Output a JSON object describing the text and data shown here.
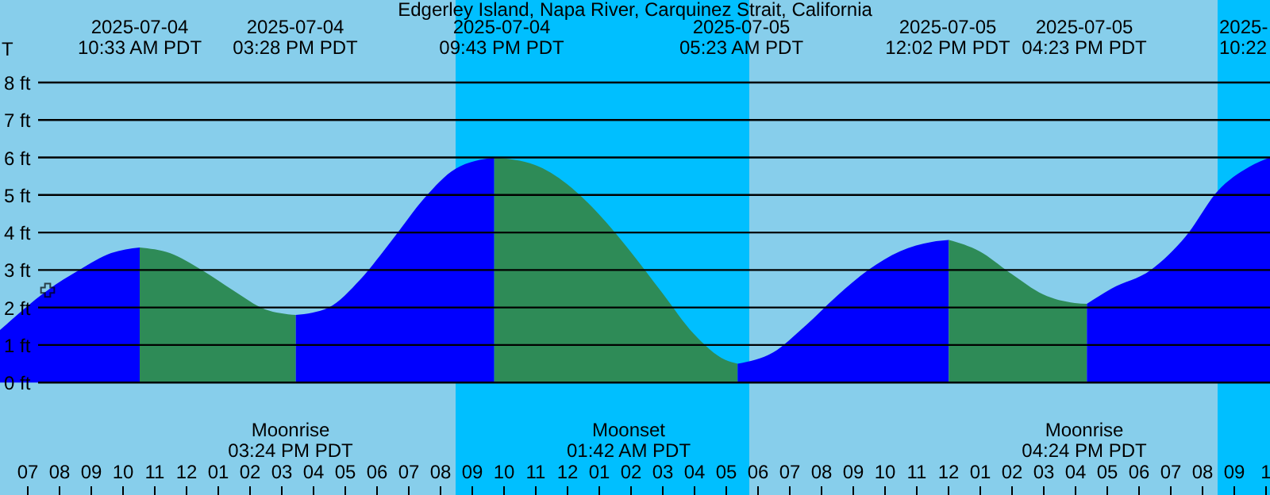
{
  "chart_data": {
    "type": "area",
    "title": "Edgerley Island, Napa River, Carquinez Strait, California",
    "xlim": [
      "2025-07-04T06:09",
      "2025-07-05T22:09"
    ],
    "ylim": [
      -3.0,
      10.2
    ],
    "xticks": [
      {
        "value": "2025-07-04T07:00",
        "label": "07"
      },
      {
        "value": "2025-07-04T08:00",
        "label": "08"
      },
      {
        "value": "2025-07-04T09:00",
        "label": "09"
      },
      {
        "value": "2025-07-04T10:00",
        "label": "10"
      },
      {
        "value": "2025-07-04T11:00",
        "label": "11"
      },
      {
        "value": "2025-07-04T12:00",
        "label": "12"
      },
      {
        "value": "2025-07-04T13:00",
        "label": "01"
      },
      {
        "value": "2025-07-04T14:00",
        "label": "02"
      },
      {
        "value": "2025-07-04T15:00",
        "label": "03"
      },
      {
        "value": "2025-07-04T16:00",
        "label": "04"
      },
      {
        "value": "2025-07-04T17:00",
        "label": "05"
      },
      {
        "value": "2025-07-04T18:00",
        "label": "06"
      },
      {
        "value": "2025-07-04T19:00",
        "label": "07"
      },
      {
        "value": "2025-07-04T20:00",
        "label": "08"
      },
      {
        "value": "2025-07-04T21:00",
        "label": "09"
      },
      {
        "value": "2025-07-04T22:00",
        "label": "10"
      },
      {
        "value": "2025-07-04T23:00",
        "label": "11"
      },
      {
        "value": "2025-07-05T00:00",
        "label": "12"
      },
      {
        "value": "2025-07-05T01:00",
        "label": "01"
      },
      {
        "value": "2025-07-05T02:00",
        "label": "02"
      },
      {
        "value": "2025-07-05T03:00",
        "label": "03"
      },
      {
        "value": "2025-07-05T04:00",
        "label": "04"
      },
      {
        "value": "2025-07-05T05:00",
        "label": "05"
      },
      {
        "value": "2025-07-05T06:00",
        "label": "06"
      },
      {
        "value": "2025-07-05T07:00",
        "label": "07"
      },
      {
        "value": "2025-07-05T08:00",
        "label": "08"
      },
      {
        "value": "2025-07-05T09:00",
        "label": "09"
      },
      {
        "value": "2025-07-05T10:00",
        "label": "10"
      },
      {
        "value": "2025-07-05T11:00",
        "label": "11"
      },
      {
        "value": "2025-07-05T12:00",
        "label": "12"
      },
      {
        "value": "2025-07-05T13:00",
        "label": "01"
      },
      {
        "value": "2025-07-05T14:00",
        "label": "02"
      },
      {
        "value": "2025-07-05T15:00",
        "label": "03"
      },
      {
        "value": "2025-07-05T16:00",
        "label": "04"
      },
      {
        "value": "2025-07-05T17:00",
        "label": "05"
      },
      {
        "value": "2025-07-05T18:00",
        "label": "06"
      },
      {
        "value": "2025-07-05T19:00",
        "label": "07"
      },
      {
        "value": "2025-07-05T20:00",
        "label": "08"
      },
      {
        "value": "2025-07-05T21:00",
        "label": "09"
      },
      {
        "value": "2025-07-05T22:00",
        "label": "1"
      }
    ],
    "yticks": [
      {
        "value": 0,
        "label": "0 ft"
      },
      {
        "value": 1,
        "label": "1 ft"
      },
      {
        "value": 2,
        "label": "2 ft"
      },
      {
        "value": 3,
        "label": "3 ft"
      },
      {
        "value": 4,
        "label": "4 ft"
      },
      {
        "value": 5,
        "label": "5 ft"
      },
      {
        "value": 6,
        "label": "6 ft"
      },
      {
        "value": 7,
        "label": "7 ft"
      },
      {
        "value": 8,
        "label": "8 ft"
      }
    ],
    "grid": "y",
    "series": [
      {
        "color": "#0000ff",
        "x": [
          "2025-07-04T06:09",
          "2025-07-04T07:39",
          "2025-07-04T08:39",
          "2025-07-04T09:39",
          "2025-07-04T10:33"
        ],
        "values": [
          1.4,
          2.46,
          3.0,
          3.45,
          3.6
        ]
      },
      {
        "color": "#2e8b57",
        "x": [
          "2025-07-04T10:33",
          "2025-07-04T11:30",
          "2025-07-04T12:30",
          "2025-07-04T13:30",
          "2025-07-04T14:30",
          "2025-07-04T15:28"
        ],
        "values": [
          3.6,
          3.45,
          3.0,
          2.45,
          1.95,
          1.8
        ]
      },
      {
        "color": "#0000ff",
        "x": [
          "2025-07-04T15:28",
          "2025-07-04T16:30",
          "2025-07-04T17:30",
          "2025-07-04T18:30",
          "2025-07-04T19:30",
          "2025-07-04T20:30",
          "2025-07-04T21:43"
        ],
        "values": [
          1.8,
          2.0,
          2.75,
          3.8,
          4.9,
          5.7,
          6.0
        ]
      },
      {
        "color": "#2e8b57",
        "x": [
          "2025-07-04T21:43",
          "2025-07-04T23:00",
          "2025-07-05T00:00",
          "2025-07-05T01:00",
          "2025-07-05T02:00",
          "2025-07-05T03:00",
          "2025-07-05T04:00",
          "2025-07-05T05:00",
          "2025-07-05T05:23"
        ],
        "values": [
          6.0,
          5.8,
          5.3,
          4.5,
          3.5,
          2.4,
          1.3,
          0.6,
          0.5
        ]
      },
      {
        "color": "#0000ff",
        "x": [
          "2025-07-05T05:23",
          "2025-07-05T06:30",
          "2025-07-05T07:30",
          "2025-07-05T08:30",
          "2025-07-05T09:30",
          "2025-07-05T10:30",
          "2025-07-05T11:30",
          "2025-07-05T12:02"
        ],
        "values": [
          0.5,
          0.8,
          1.5,
          2.3,
          3.0,
          3.5,
          3.75,
          3.8
        ]
      },
      {
        "color": "#2e8b57",
        "x": [
          "2025-07-05T12:02",
          "2025-07-05T13:00",
          "2025-07-05T14:00",
          "2025-07-05T15:00",
          "2025-07-05T16:00",
          "2025-07-05T16:23"
        ],
        "values": [
          3.8,
          3.5,
          2.9,
          2.35,
          2.12,
          2.1
        ]
      },
      {
        "color": "#0000ff",
        "x": [
          "2025-07-05T16:23",
          "2025-07-05T17:09",
          "2025-07-05T18:24",
          "2025-07-05T19:30",
          "2025-07-05T20:30",
          "2025-07-05T21:30",
          "2025-07-05T22:09"
        ],
        "values": [
          2.1,
          2.5,
          3.0,
          3.9,
          5.1,
          5.75,
          6.0
        ]
      },
      {
        "type": "scatter",
        "marker": "cross",
        "color": "#000000",
        "x": [
          "2025-07-04T07:39"
        ],
        "values": [
          2.46
        ]
      }
    ],
    "bands": [
      {
        "axis": "x",
        "from": "2025-07-04T20:30",
        "to": "2025-07-05T05:45",
        "color": "#00bfff"
      },
      {
        "axis": "x",
        "from": "2025-07-05T20:30",
        "to": "2025-07-05T22:09",
        "color": "#00bfff"
      }
    ],
    "annotations": [
      "T",
      "2025-07-04\n10:33 AM PDT",
      "2025-07-04\n03:28 PM PDT",
      "2025-07-04\n09:43 PM PDT",
      "2025-07-05\n05:23 AM PDT",
      "2025-07-05\n12:02 PM PDT",
      "2025-07-05\n04:23 PM PDT",
      "2025-\n10:22",
      "Moonrise\n03:24 PM PDT",
      "Moonset\n01:42 AM PDT",
      "Moonrise\n04:24 PM PDT"
    ]
  }
}
